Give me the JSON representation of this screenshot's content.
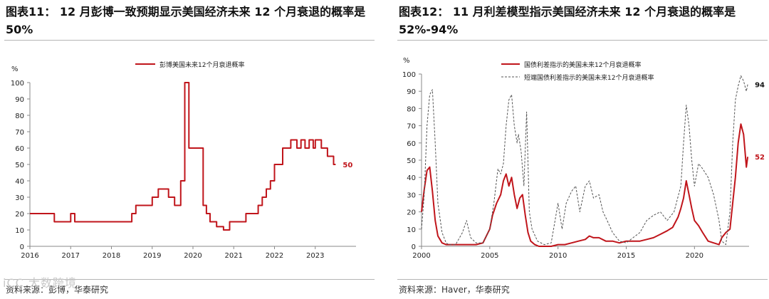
{
  "watermark": "iCC 大数跨境",
  "panels": [
    {
      "title": "图表11： 12 月彭博一致预期显示美国经济未来 12 个月衰退的概率是 50%",
      "source": "资料来源：彭博，华泰研究",
      "chart_data": {
        "type": "line",
        "title": "",
        "xlabel": "",
        "ylabel": "%",
        "xlim": [
          2016,
          2024
        ],
        "ylim": [
          0,
          100
        ],
        "xticks": [
          "2016",
          "2017",
          "2018",
          "2019",
          "2020",
          "2021",
          "2022",
          "2023"
        ],
        "yticks": [
          "0",
          "10",
          "20",
          "30",
          "40",
          "50",
          "60",
          "70",
          "80",
          "90",
          "100"
        ],
        "grid": false,
        "legend": "top-center",
        "series": [
          {
            "name": "彭博美国未来12个月衰退概率",
            "color": "#c0151b",
            "style": "step",
            "end_label": "50",
            "x": [
              2016.0,
              2016.6,
              2016.6,
              2017.0,
              2017.0,
              2017.1,
              2017.1,
              2018.5,
              2018.5,
              2018.6,
              2018.6,
              2019.0,
              2019.0,
              2019.15,
              2019.15,
              2019.4,
              2019.4,
              2019.55,
              2019.55,
              2019.7,
              2019.7,
              2019.8,
              2019.8,
              2019.9,
              2019.9,
              2020.25,
              2020.25,
              2020.33,
              2020.33,
              2020.42,
              2020.42,
              2020.58,
              2020.58,
              2020.75,
              2020.75,
              2020.9,
              2020.9,
              2021.3,
              2021.3,
              2021.6,
              2021.6,
              2021.7,
              2021.7,
              2021.8,
              2021.8,
              2021.9,
              2021.9,
              2022.0,
              2022.0,
              2022.2,
              2022.2,
              2022.4,
              2022.4,
              2022.55,
              2022.55,
              2022.65,
              2022.65,
              2022.75,
              2022.75,
              2022.85,
              2022.85,
              2022.95,
              2022.95,
              2023.0,
              2023.0,
              2023.15,
              2023.15,
              2023.3,
              2023.3,
              2023.45,
              2023.45,
              2023.5
            ],
            "y": [
              20,
              20,
              15,
              15,
              20,
              20,
              15,
              15,
              20,
              20,
              25,
              25,
              30,
              30,
              35,
              35,
              30,
              30,
              25,
              25,
              40,
              40,
              100,
              100,
              60,
              60,
              25,
              25,
              20,
              20,
              15,
              15,
              12,
              12,
              10,
              10,
              15,
              15,
              20,
              20,
              25,
              25,
              30,
              30,
              35,
              35,
              40,
              40,
              50,
              50,
              60,
              60,
              65,
              65,
              60,
              60,
              65,
              65,
              60,
              60,
              65,
              65,
              60,
              60,
              65,
              65,
              60,
              60,
              55,
              55,
              50,
              50
            ]
          }
        ]
      }
    },
    {
      "title": "图表12： 11 月利差模型指示美国经济未来 12 个月衰退的概率是 52%-94%",
      "source": "资料来源：Haver，华泰研究",
      "chart_data": {
        "type": "line",
        "title": "",
        "xlabel": "",
        "ylabel": "%",
        "xlim": [
          2000,
          2024
        ],
        "ylim": [
          0,
          100
        ],
        "xticks": [
          "2000",
          "2005",
          "2010",
          "2015",
          "2020"
        ],
        "yticks": [
          "0",
          "10",
          "20",
          "30",
          "40",
          "50",
          "60",
          "70",
          "80",
          "90",
          "100"
        ],
        "grid": false,
        "legend": "top-center",
        "series": [
          {
            "name": "国债利差指示的美国未来12个月衰退概率",
            "color": "#c0151b",
            "style": "solid",
            "end_label": "52",
            "x": [
              2000.0,
              2000.2,
              2000.4,
              2000.6,
              2000.8,
              2001.0,
              2001.2,
              2001.5,
              2001.8,
              2002.2,
              2002.6,
              2003.0,
              2003.5,
              2004.0,
              2004.5,
              2005.0,
              2005.2,
              2005.5,
              2005.8,
              2006.0,
              2006.2,
              2006.4,
              2006.6,
              2006.8,
              2007.0,
              2007.2,
              2007.4,
              2007.6,
              2007.8,
              2008.0,
              2008.3,
              2008.6,
              2009.0,
              2009.5,
              2010.0,
              2010.5,
              2011.0,
              2011.5,
              2012.0,
              2012.3,
              2012.6,
              2013.0,
              2013.5,
              2014.0,
              2014.5,
              2015.0,
              2015.5,
              2016.0,
              2016.5,
              2017.0,
              2017.5,
              2018.0,
              2018.4,
              2018.8,
              2019.0,
              2019.2,
              2019.4,
              2019.6,
              2019.8,
              2020.0,
              2020.3,
              2020.6,
              2021.0,
              2021.4,
              2021.8,
              2022.0,
              2022.3,
              2022.6,
              2022.8,
              2023.0,
              2023.2,
              2023.4,
              2023.6,
              2023.8,
              2023.9
            ],
            "y": [
              20,
              33,
              44,
              46,
              32,
              15,
              6,
              2,
              1,
              1,
              1,
              1,
              1,
              1,
              2,
              10,
              18,
              25,
              30,
              38,
              42,
              35,
              40,
              30,
              22,
              28,
              30,
              18,
              8,
              3,
              1,
              0,
              0,
              0,
              1,
              1,
              2,
              3,
              4,
              6,
              5,
              5,
              3,
              3,
              2,
              3,
              3,
              3,
              4,
              5,
              7,
              9,
              11,
              17,
              22,
              28,
              38,
              30,
              22,
              15,
              12,
              8,
              3,
              2,
              1,
              5,
              8,
              10,
              25,
              40,
              60,
              71,
              65,
              46,
              52
            ]
          },
          {
            "name": "短端国债利差指示的美国未来12个月衰退概率",
            "color": "#555555",
            "style": "dashed",
            "end_label": "94",
            "x": [
              2000.0,
              2000.2,
              2000.4,
              2000.6,
              2000.8,
              2001.0,
              2001.2,
              2001.5,
              2001.8,
              2002.0,
              2002.5,
              2003.0,
              2003.3,
              2003.6,
              2004.0,
              2004.5,
              2005.0,
              2005.3,
              2005.6,
              2005.8,
              2006.0,
              2006.2,
              2006.4,
              2006.6,
              2006.8,
              2007.0,
              2007.1,
              2007.3,
              2007.5,
              2007.7,
              2007.9,
              2008.1,
              2008.5,
              2009.0,
              2009.5,
              2010.0,
              2010.3,
              2010.6,
              2011.0,
              2011.3,
              2011.6,
              2012.0,
              2012.3,
              2012.6,
              2013.0,
              2013.3,
              2013.6,
              2014.0,
              2014.5,
              2015.0,
              2015.5,
              2016.0,
              2016.5,
              2017.0,
              2017.5,
              2018.0,
              2018.5,
              2019.0,
              2019.2,
              2019.4,
              2019.6,
              2019.8,
              2020.0,
              2020.3,
              2020.6,
              2021.0,
              2021.4,
              2021.8,
              2022.0,
              2022.3,
              2022.6,
              2022.8,
              2023.0,
              2023.2,
              2023.4,
              2023.6,
              2023.8,
              2023.9
            ],
            "y": [
              10,
              30,
              70,
              88,
              91,
              60,
              25,
              8,
              2,
              1,
              1,
              8,
              15,
              5,
              2,
              2,
              10,
              25,
              45,
              42,
              48,
              70,
              85,
              88,
              70,
              60,
              65,
              55,
              35,
              78,
              20,
              10,
              3,
              1,
              2,
              25,
              10,
              25,
              32,
              35,
              20,
              35,
              38,
              28,
              30,
              20,
              15,
              8,
              3,
              2,
              5,
              8,
              15,
              18,
              20,
              15,
              20,
              35,
              60,
              82,
              70,
              50,
              35,
              48,
              45,
              40,
              30,
              15,
              3,
              1,
              20,
              60,
              85,
              93,
              99,
              96,
              90,
              94
            ]
          }
        ]
      }
    }
  ]
}
